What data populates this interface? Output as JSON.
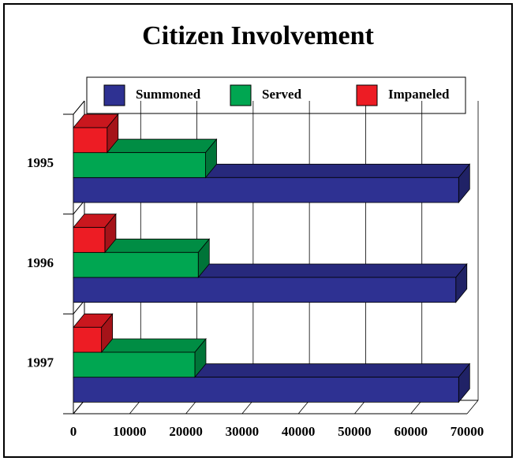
{
  "chart_data": {
    "type": "bar3d",
    "orientation": "horizontal",
    "title": "Citizen Involvement",
    "categories": [
      "1995",
      "1996",
      "1997"
    ],
    "series": [
      {
        "name": "Summoned",
        "color": "#2e3192",
        "values": [
          68500,
          68000,
          68500
        ]
      },
      {
        "name": "Served",
        "color": "#00a651",
        "values": [
          23500,
          22200,
          21600
        ]
      },
      {
        "name": "Impaneled",
        "color": "#ed1c24",
        "values": [
          6000,
          5600,
          5000
        ]
      }
    ],
    "xlim": [
      0,
      70000
    ],
    "xticks": [
      0,
      10000,
      20000,
      30000,
      40000,
      50000,
      60000,
      70000
    ],
    "grid": true
  }
}
